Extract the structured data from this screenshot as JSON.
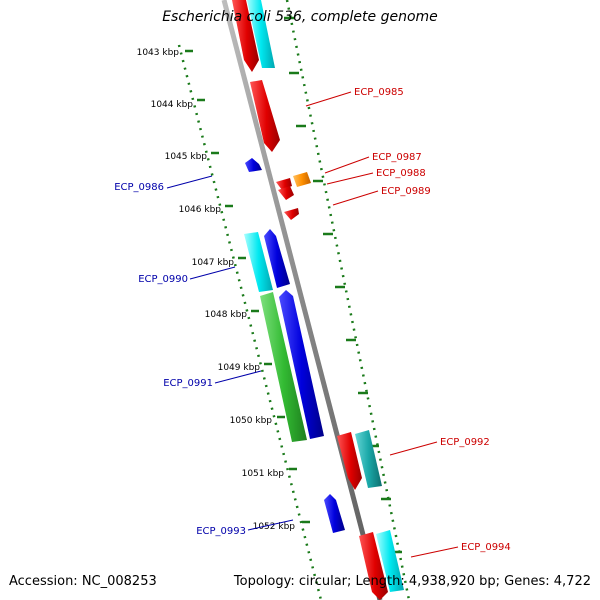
{
  "title": "Escherichia coli 536, complete genome",
  "accession": "Accession: NC_008253",
  "summary": "Topology: circular; Length: 4,938,920 bp; Genes: 4,722",
  "ticks": [
    {
      "label": "1043 kbp"
    },
    {
      "label": "1044 kbp"
    },
    {
      "label": "1045 kbp"
    },
    {
      "label": "1046 kbp"
    },
    {
      "label": "1047 kbp"
    },
    {
      "label": "1048 kbp"
    },
    {
      "label": "1049 kbp"
    },
    {
      "label": "1050 kbp"
    },
    {
      "label": "1051 kbp"
    },
    {
      "label": "1052 kbp"
    }
  ],
  "labels": [
    {
      "text": "ECP_0985",
      "strand": "plus"
    },
    {
      "text": "ECP_0987",
      "strand": "plus"
    },
    {
      "text": "ECP_0988",
      "strand": "plus"
    },
    {
      "text": "ECP_0989",
      "strand": "plus"
    },
    {
      "text": "ECP_0992",
      "strand": "plus"
    },
    {
      "text": "ECP_0994",
      "strand": "plus"
    },
    {
      "text": "ECP_0986",
      "strand": "minus"
    },
    {
      "text": "ECP_0990",
      "strand": "minus"
    },
    {
      "text": "ECP_0991",
      "strand": "minus"
    },
    {
      "text": "ECP_0993",
      "strand": "minus"
    }
  ],
  "colors": {
    "backbone": "#8c8c8c",
    "plus_cds": "#ff0000",
    "plus_gene": "#00ffff",
    "minus_cds": "#0000ff",
    "minus_gene": "#00ffff",
    "rna": "#ff8c00",
    "misc": "#33cc33",
    "teal": "#20b2aa",
    "ruler": "#1a7a1a",
    "plus_label": "#cc0000",
    "minus_label": "#0000aa"
  }
}
